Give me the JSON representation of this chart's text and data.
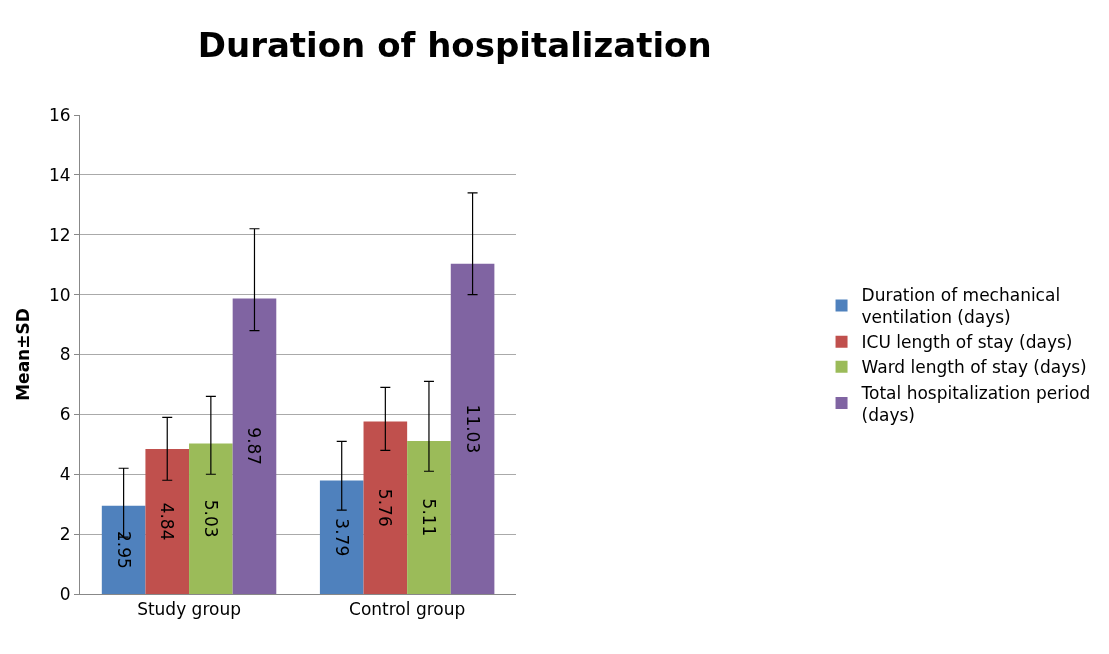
{
  "chart_data": {
    "type": "bar",
    "title": "Duration of hospitalization",
    "ylabel": "Mean±SD",
    "categories": [
      "Study group",
      "Control group"
    ],
    "series": [
      {
        "name": "Duration of mechanical ventilation (days)",
        "color": "#4f81bd",
        "values": [
          2.95,
          3.79
        ],
        "errors": [
          [
            1.9,
            4.2
          ],
          [
            2.8,
            5.1
          ]
        ]
      },
      {
        "name": "ICU length of stay (days)",
        "color": "#c0504d",
        "values": [
          4.84,
          5.76
        ],
        "errors": [
          [
            3.8,
            5.9
          ],
          [
            4.8,
            6.9
          ]
        ]
      },
      {
        "name": "Ward length of stay (days)",
        "color": "#9bbb59",
        "values": [
          5.03,
          5.11
        ],
        "errors": [
          [
            4.0,
            6.6
          ],
          [
            4.1,
            7.1
          ]
        ]
      },
      {
        "name": "Total hospitalization period (days)",
        "color": "#8064a2",
        "values": [
          9.87,
          11.03
        ],
        "errors": [
          [
            8.8,
            12.2
          ],
          [
            10.0,
            13.4
          ]
        ]
      }
    ],
    "ylim": [
      0,
      16
    ],
    "yticks": [
      0,
      2,
      4,
      6,
      8,
      10,
      12,
      14,
      16
    ],
    "grid": "y",
    "legend": "right",
    "data_labels": true
  }
}
